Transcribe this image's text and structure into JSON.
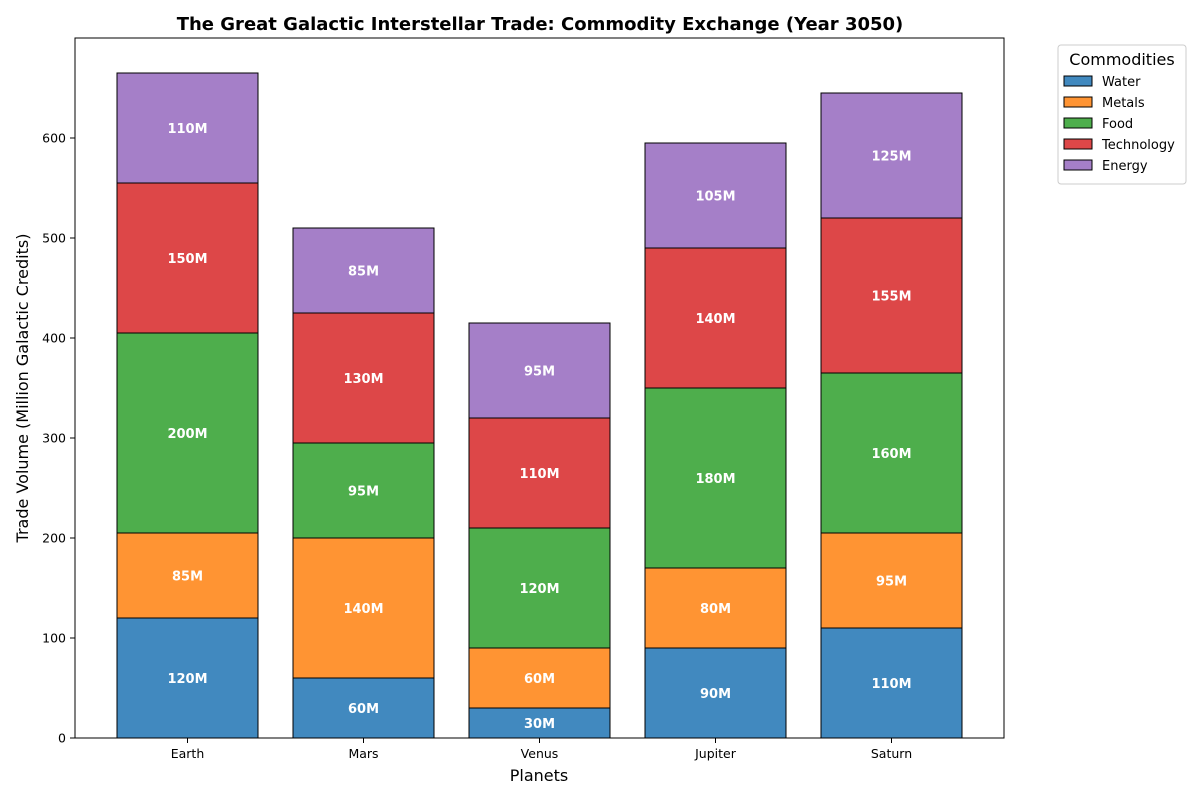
{
  "chart_data": {
    "type": "bar",
    "stacked": true,
    "title": "The Great Galactic Interstellar Trade: Commodity Exchange (Year 3050)",
    "xlabel": "Planets",
    "ylabel": "Trade Volume (Million Galactic Credits)",
    "categories": [
      "Earth",
      "Mars",
      "Venus",
      "Jupiter",
      "Saturn"
    ],
    "ylim": [
      0,
      700
    ],
    "yticks": [
      0,
      100,
      200,
      300,
      400,
      500,
      600
    ],
    "value_suffix": "M",
    "legend": {
      "title": "Commodities",
      "placement": "outside-top-right"
    },
    "series": [
      {
        "name": "Water",
        "color": "#4189BF",
        "values": [
          120,
          60,
          30,
          90,
          110
        ]
      },
      {
        "name": "Metals",
        "color": "#FF9433",
        "values": [
          85,
          140,
          60,
          80,
          95
        ]
      },
      {
        "name": "Food",
        "color": "#4EAE4C",
        "values": [
          200,
          95,
          120,
          180,
          160
        ]
      },
      {
        "name": "Technology",
        "color": "#DD4748",
        "values": [
          150,
          130,
          110,
          140,
          155
        ]
      },
      {
        "name": "Energy",
        "color": "#A57FC8",
        "values": [
          110,
          85,
          95,
          105,
          125
        ]
      }
    ],
    "grid": false
  }
}
